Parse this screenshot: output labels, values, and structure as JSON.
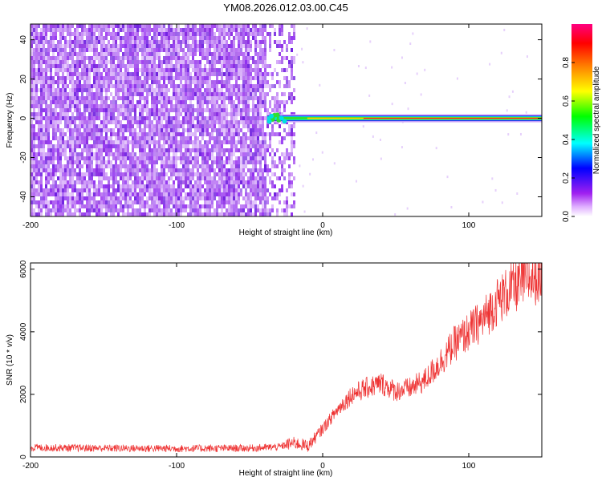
{
  "title": "YM08.2026.012.03.00.C45",
  "chart_data": [
    {
      "type": "heatmap",
      "xlabel": "Height of straight line (km)",
      "ylabel": "Frequency (Hz)",
      "xlim": [
        -200,
        150
      ],
      "ylim": [
        -50,
        48
      ],
      "xticks": [
        -200,
        -100,
        0,
        100
      ],
      "yticks": [
        -40,
        -20,
        0,
        20,
        40
      ],
      "colorbar": {
        "label": "Normalized spectral amplitude",
        "ticks": [
          0.0,
          0.2,
          0.4,
          0.6,
          0.8
        ],
        "range": [
          0,
          1
        ],
        "palette": [
          "#ffffff",
          "#a020f0",
          "#0000ff",
          "#00ffff",
          "#00ff00",
          "#ffff00",
          "#ff8000",
          "#ff0000",
          "#ff0080"
        ]
      },
      "noise_region_km": [
        -200,
        -20
      ],
      "signal_line": {
        "frequency_hz": 0,
        "start_km": -38
      }
    },
    {
      "type": "line",
      "xlabel": "Height of straight line (km)",
      "ylabel": "SNR (10 * v/v)",
      "xlim": [
        -200,
        150
      ],
      "ylim": [
        0,
        6200
      ],
      "xticks": [
        -200,
        -100,
        0,
        100
      ],
      "yticks": [
        0,
        2000,
        4000,
        6000
      ],
      "color": "#ee3333",
      "x": [
        -200,
        -150,
        -100,
        -50,
        -30,
        -20,
        -10,
        0,
        10,
        20,
        30,
        40,
        50,
        60,
        70,
        80,
        90,
        100,
        110,
        120,
        130,
        140,
        150
      ],
      "y": [
        300,
        280,
        270,
        280,
        320,
        450,
        350,
        900,
        1500,
        2000,
        2200,
        2350,
        2100,
        2200,
        2450,
        3000,
        3600,
        4000,
        4400,
        5000,
        5400,
        5700,
        5800
      ]
    }
  ]
}
